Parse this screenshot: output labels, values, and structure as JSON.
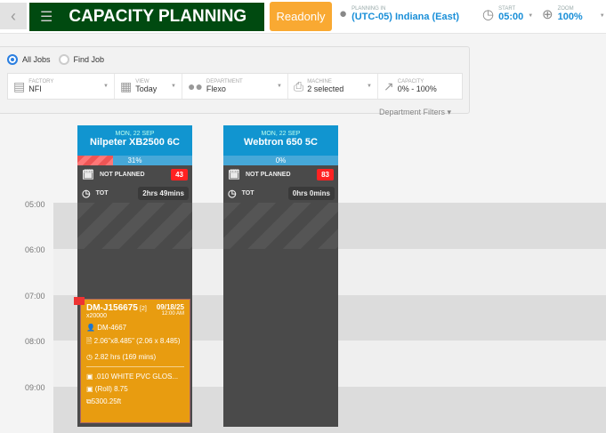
{
  "header": {
    "title": "CAPACITY PLANNING",
    "readonly": "Readonly",
    "planning_label": "PLANNING IN",
    "planning_value": "(UTC-05) Indiana (East)",
    "start_label": "START",
    "start_value": "05:00",
    "zoom_label": "ZOOM",
    "zoom_value": "100%"
  },
  "radios": {
    "all_jobs": "All Jobs",
    "find_job": "Find Job",
    "selected": "All Jobs"
  },
  "filters": [
    {
      "label": "FACTORY",
      "value": "NFI",
      "icon": "factory-icon"
    },
    {
      "label": "VIEW",
      "value": "Today",
      "icon": "calendar-icon"
    },
    {
      "label": "DEPARTMENT",
      "value": "Flexo",
      "icon": "users-icon"
    },
    {
      "label": "MACHINE",
      "value": "2 selected",
      "icon": "printer-icon"
    },
    {
      "label": "CAPACITY",
      "value": "0% - 100%",
      "icon": "chart-icon"
    }
  ],
  "department_filters": "Department Filters",
  "times": [
    "05:00",
    "06:00",
    "07:00",
    "08:00",
    "09:00"
  ],
  "machines": [
    {
      "date": "MON, 22 SEP",
      "name": "Nilpeter XB2500 6C",
      "capacity": "31%",
      "capacity_pct": 31,
      "not_planned_label": "NOT PLANNED",
      "not_planned": "43",
      "tot_label": "TOT",
      "tot": "2hrs 49mins"
    },
    {
      "date": "MON, 22 SEP",
      "name": "Webtron 650 5C",
      "capacity": "0%",
      "capacity_pct": 0,
      "not_planned_label": "NOT PLANNED",
      "not_planned": "83",
      "tot_label": "TOT",
      "tot": "0hrs 0mins"
    }
  ],
  "job": {
    "id": "DM-J156675",
    "count": "[2]",
    "qty": "x20000",
    "date": "09/18/25",
    "time": "12:00 AM",
    "customer": "DM-4667",
    "size": "2.06\"x8.485\" (2.06 x 8.485)",
    "duration": "2.82 hrs (169 mins)",
    "material": ".010 WHITE PVC GLOS...",
    "roll": "(Roll) 8.75",
    "length": "5300.25ft"
  },
  "colors": {
    "title_bg": "#004a10",
    "readonly": "#f9a932",
    "machine_header": "#1195d0",
    "job_card": "#e89c10"
  }
}
